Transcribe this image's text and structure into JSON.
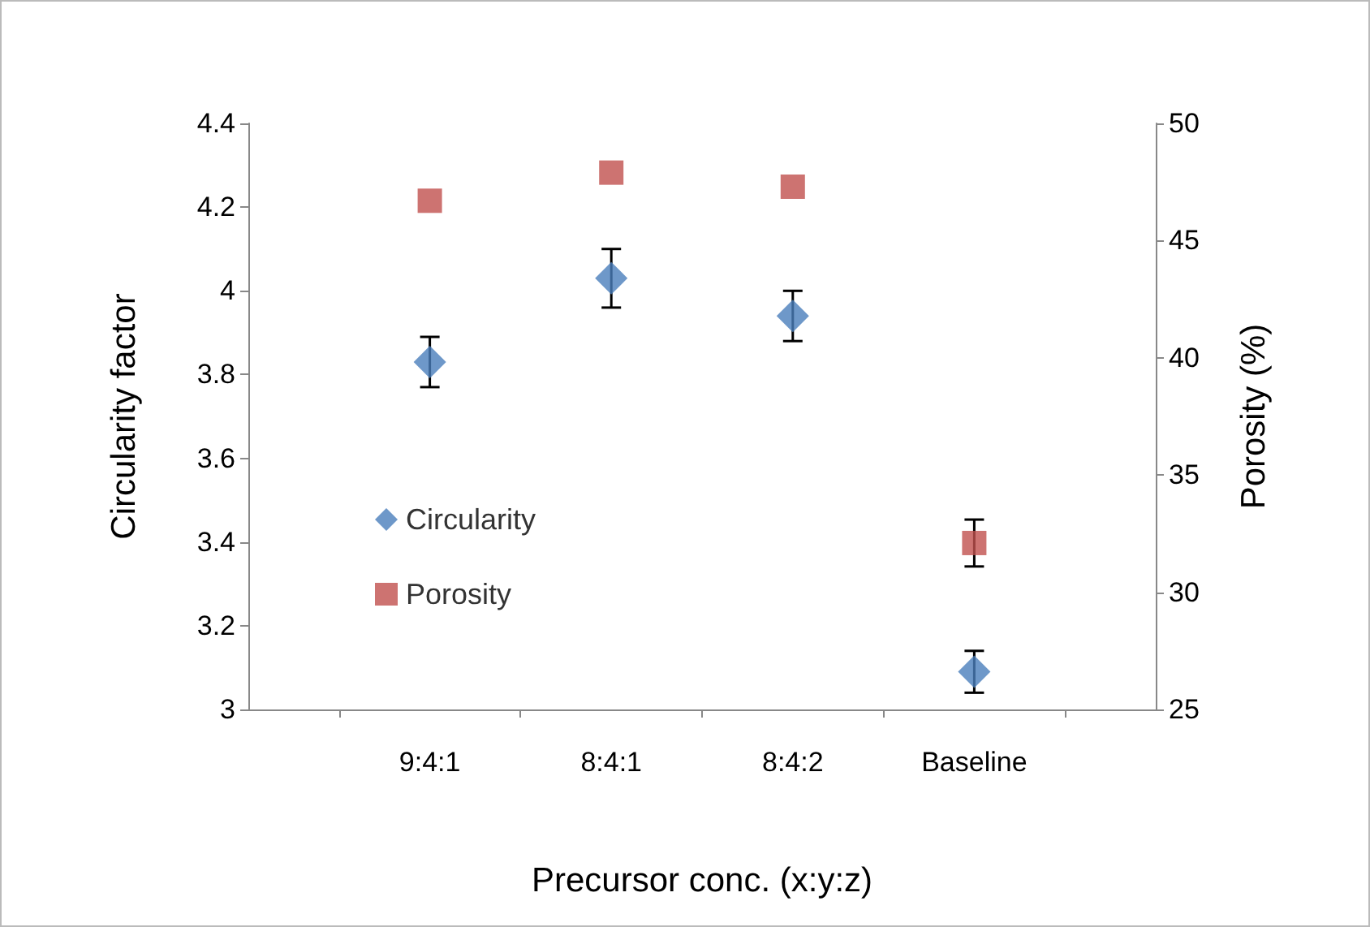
{
  "chart_data": {
    "type": "scatter",
    "xlabel": "Precursor conc. (x:y:z)",
    "ylabel": "Circularity factor",
    "y2label": "Porosity (%)",
    "categories": [
      "9:4:1",
      "8:4:1",
      "8:4:2",
      "Baseline"
    ],
    "series": [
      {
        "name": "Circularity",
        "color": "#4a7ebb",
        "marker": "diamond",
        "values": [
          3.83,
          4.03,
          3.94,
          3.09
        ],
        "errors": [
          0.06,
          0.07,
          0.06,
          0.05
        ]
      },
      {
        "name": "Porosity",
        "color": "#c0504d",
        "marker": "square",
        "axis": "y2",
        "values": [
          46.7,
          47.9,
          47.3,
          32.1
        ],
        "errors": [
          null,
          null,
          null,
          1.0
        ]
      }
    ],
    "ylim": [
      3,
      4.4
    ],
    "yticks": [
      3,
      3.2,
      3.4,
      3.6,
      3.8,
      4,
      4.2,
      4.4
    ],
    "y2lim": [
      25,
      50
    ],
    "y2ticks": [
      25,
      30,
      35,
      40,
      45,
      50
    ],
    "grid": false,
    "legend": "left"
  }
}
